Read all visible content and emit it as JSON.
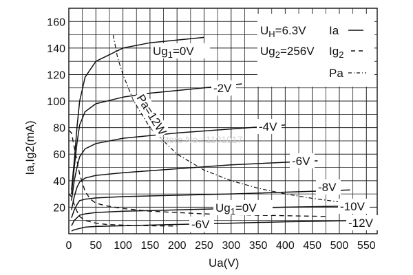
{
  "chart_data": {
    "type": "line",
    "xlabel": "Ua(V)",
    "ylabel": "Ia,Ig2(mA)",
    "xlim": [
      0,
      570
    ],
    "ylim": [
      0,
      170
    ],
    "x_ticks": [
      "0",
      "50",
      "100",
      "150",
      "200",
      "250",
      "300",
      "350",
      "400",
      "450",
      "500",
      "550"
    ],
    "y_ticks": [
      "20",
      "40",
      "60",
      "80",
      "100",
      "120",
      "140",
      "160"
    ],
    "grid": true,
    "legend": {
      "position": "top-right",
      "line1": {
        "text": "UH=6.3V",
        "sub_prefix": "U",
        "sub": "H",
        "suffix": "=6.3V",
        "key": "Ia",
        "style": "solid"
      },
      "line2": {
        "sub_prefix": "Ug",
        "sub": "2",
        "suffix": "=256V",
        "key_prefix": "Ig",
        "key_sub": "2",
        "style": "dashed"
      },
      "line3": {
        "key": "Pa",
        "style": "dash-dot"
      }
    },
    "watermark": "Store No.: 1101017",
    "ia_series": [
      {
        "label": "Ug1=0V",
        "points": [
          [
            5,
            33
          ],
          [
            10,
            55
          ],
          [
            15,
            80
          ],
          [
            20,
            100
          ],
          [
            30,
            118
          ],
          [
            50,
            130
          ],
          [
            100,
            140
          ],
          [
            150,
            144
          ],
          [
            200,
            146
          ],
          [
            250,
            148
          ]
        ]
      },
      {
        "label": "-2V",
        "points": [
          [
            5,
            30
          ],
          [
            10,
            50
          ],
          [
            15,
            68
          ],
          [
            20,
            82
          ],
          [
            30,
            92
          ],
          [
            50,
            98
          ],
          [
            100,
            103
          ],
          [
            150,
            106
          ],
          [
            200,
            108
          ],
          [
            250,
            110
          ],
          [
            320,
            113
          ]
        ]
      },
      {
        "label": "-4V",
        "points": [
          [
            5,
            25
          ],
          [
            10,
            40
          ],
          [
            15,
            50
          ],
          [
            20,
            58
          ],
          [
            30,
            64
          ],
          [
            50,
            68
          ],
          [
            100,
            72
          ],
          [
            200,
            76
          ],
          [
            300,
            79
          ],
          [
            400,
            82
          ]
        ]
      },
      {
        "label": "-6V",
        "points": [
          [
            5,
            18
          ],
          [
            10,
            28
          ],
          [
            15,
            35
          ],
          [
            20,
            39
          ],
          [
            30,
            42
          ],
          [
            50,
            44
          ],
          [
            100,
            46
          ],
          [
            200,
            49
          ],
          [
            300,
            52
          ],
          [
            460,
            55
          ]
        ]
      },
      {
        "label": "-8V",
        "points": [
          [
            5,
            12
          ],
          [
            10,
            18
          ],
          [
            15,
            22
          ],
          [
            20,
            25
          ],
          [
            30,
            26
          ],
          [
            50,
            27
          ],
          [
            100,
            28
          ],
          [
            200,
            29
          ],
          [
            300,
            30
          ],
          [
            450,
            32
          ],
          [
            520,
            33
          ]
        ]
      },
      {
        "label": "-10V",
        "points": [
          [
            5,
            6
          ],
          [
            10,
            10
          ],
          [
            15,
            12
          ],
          [
            20,
            14
          ],
          [
            30,
            15
          ],
          [
            50,
            16
          ],
          [
            100,
            17
          ],
          [
            200,
            18
          ],
          [
            300,
            19
          ],
          [
            400,
            20
          ],
          [
            530,
            21
          ]
        ]
      },
      {
        "label": "-12V",
        "points": [
          [
            5,
            2
          ],
          [
            10,
            3
          ],
          [
            20,
            4
          ],
          [
            30,
            5
          ],
          [
            50,
            5.5
          ],
          [
            100,
            6
          ],
          [
            200,
            7
          ],
          [
            300,
            8
          ],
          [
            400,
            9
          ],
          [
            540,
            10
          ]
        ]
      }
    ],
    "ig2_series": [
      {
        "label": "Ug1=0V",
        "points": [
          [
            0,
            78
          ],
          [
            5,
            76
          ],
          [
            10,
            65
          ],
          [
            15,
            55
          ],
          [
            20,
            45
          ],
          [
            30,
            32
          ],
          [
            40,
            26
          ],
          [
            50,
            23
          ],
          [
            70,
            21
          ],
          [
            100,
            19
          ],
          [
            150,
            17
          ],
          [
            250,
            15
          ],
          [
            350,
            14
          ],
          [
            480,
            13
          ]
        ]
      },
      {
        "label": "-6V",
        "points": [
          [
            0,
            30
          ],
          [
            5,
            28
          ],
          [
            10,
            22
          ],
          [
            15,
            17
          ],
          [
            20,
            13
          ],
          [
            30,
            10
          ],
          [
            50,
            8
          ],
          [
            70,
            7
          ],
          [
            100,
            6.5
          ],
          [
            150,
            6
          ],
          [
            200,
            5.8
          ]
        ]
      }
    ],
    "pa_curve": {
      "label": "Pa=12W",
      "points": [
        [
          82,
          150
        ],
        [
          90,
          133
        ],
        [
          100,
          120
        ],
        [
          120,
          100
        ],
        [
          150,
          80
        ],
        [
          200,
          60
        ],
        [
          250,
          48
        ],
        [
          300,
          40
        ],
        [
          350,
          34.3
        ],
        [
          400,
          30
        ],
        [
          450,
          26.7
        ],
        [
          500,
          24
        ]
      ]
    },
    "curve_labels": [
      "Ug1=0V",
      "-2V",
      "-4V",
      "-6V",
      "-8V",
      "-10V",
      "-12V",
      "Ug1=0V",
      "-6V",
      "Pa=12W"
    ]
  }
}
